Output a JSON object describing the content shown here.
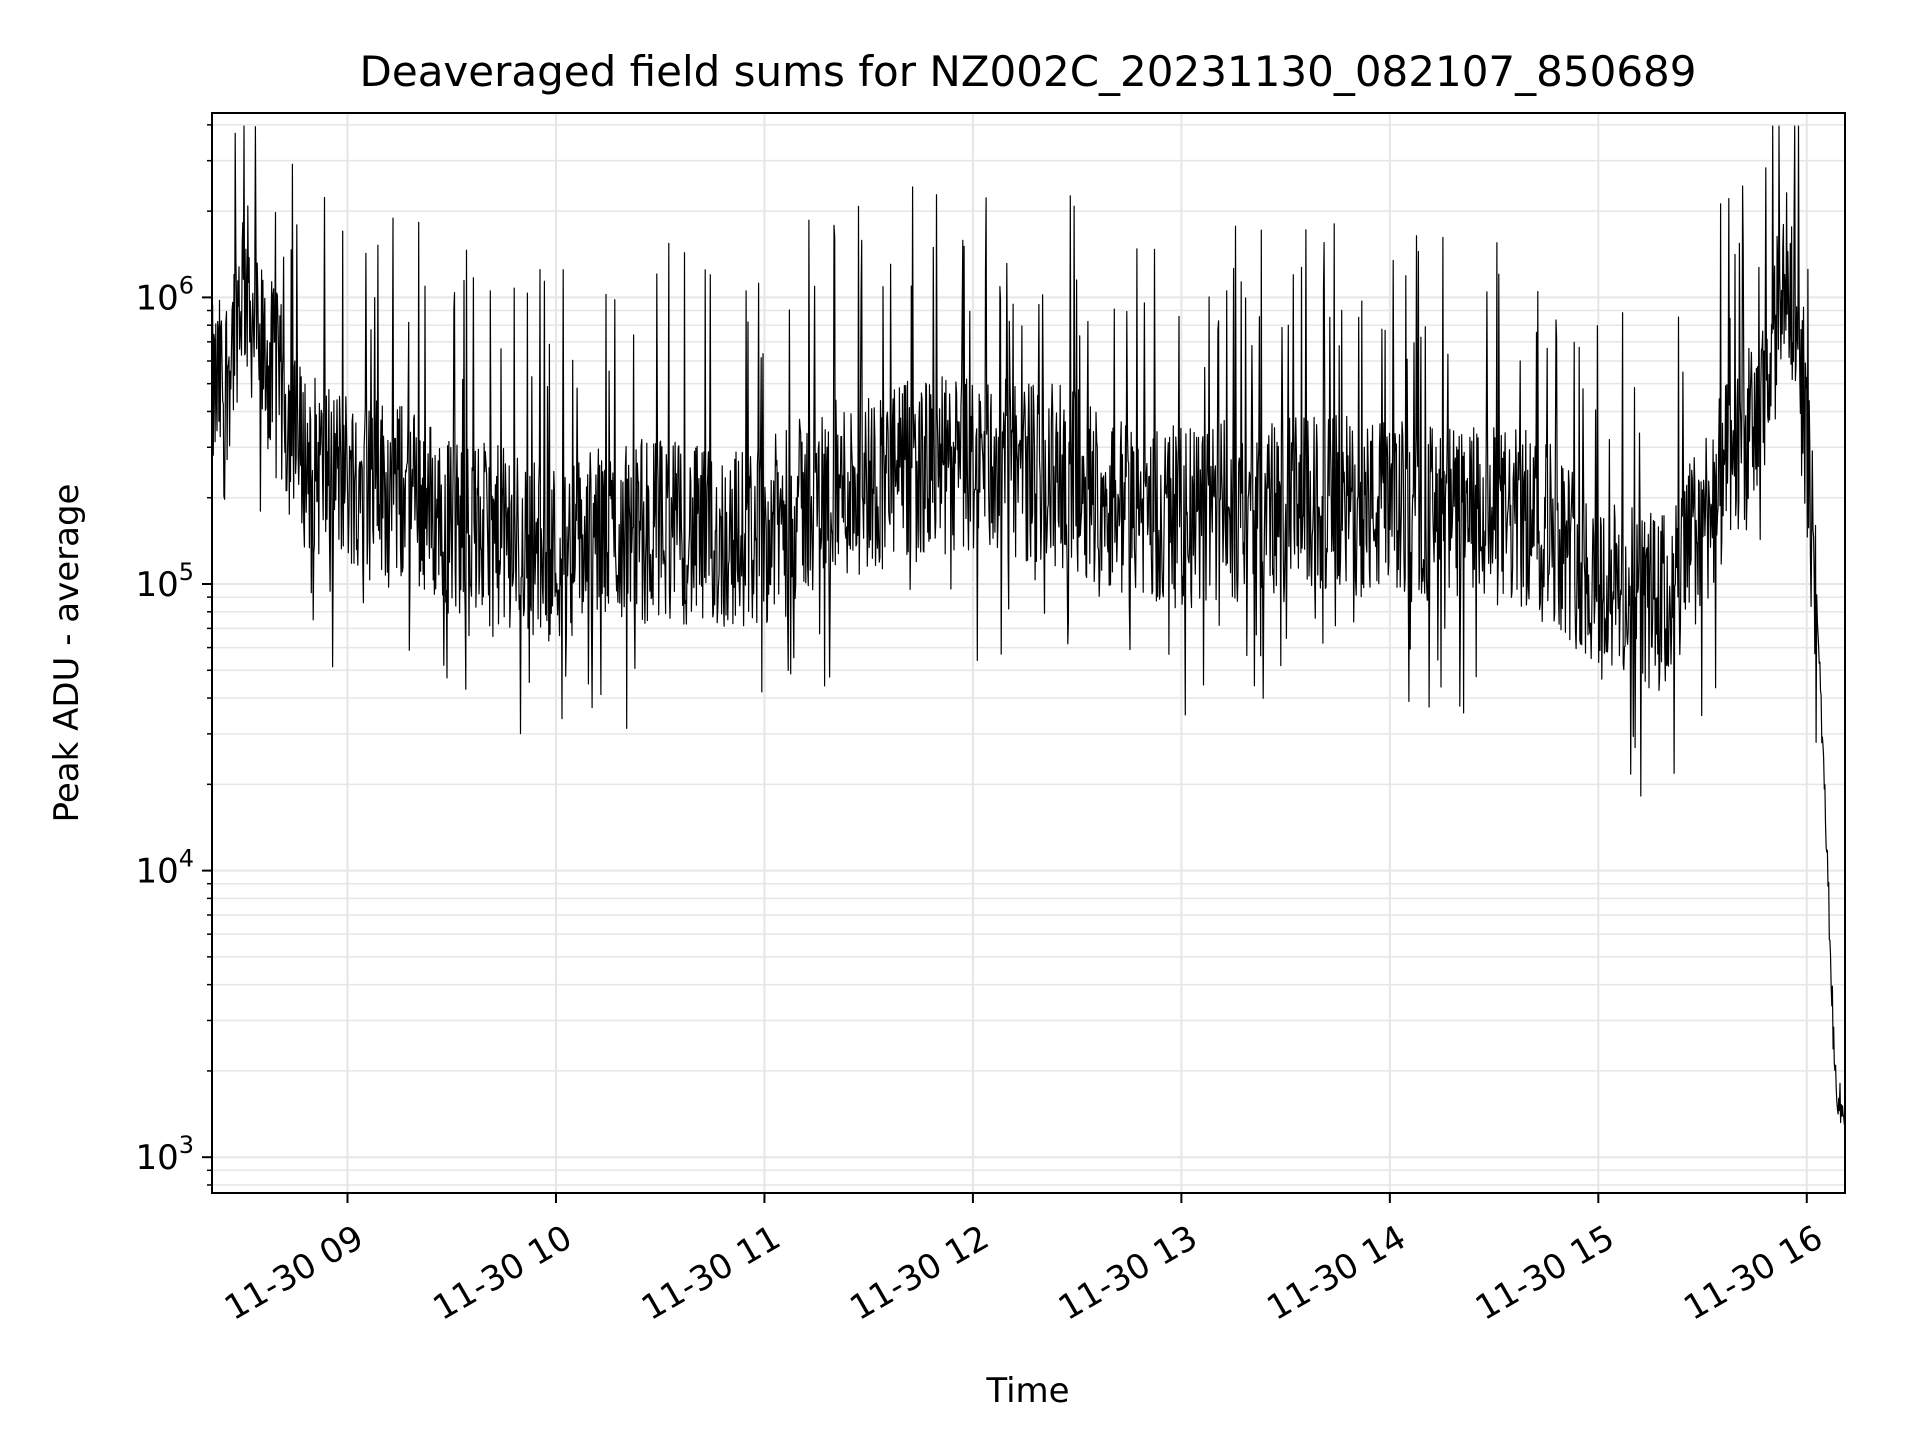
{
  "chart_data": {
    "type": "line",
    "title": "Deaveraged field sums for NZ002C_20231130_082107_850689",
    "xlabel": "Time",
    "ylabel": "Peak ADU - average",
    "y_scale": "log",
    "ylim": [
      750,
      4400000
    ],
    "xlim": [
      "2023-11-30 08:21",
      "2023-11-30 16:11"
    ],
    "grid": true,
    "line_color": "#000000",
    "grid_color": "#e6e6e6",
    "x_tick_labels": [
      "11-30 09",
      "11-30 10",
      "11-30 11",
      "11-30 12",
      "11-30 13",
      "11-30 14",
      "11-30 15",
      "11-30 16"
    ],
    "x_tick_times": [
      "2023-11-30 09:00",
      "2023-11-30 10:00",
      "2023-11-30 11:00",
      "2023-11-30 12:00",
      "2023-11-30 13:00",
      "2023-11-30 14:00",
      "2023-11-30 15:00",
      "2023-11-30 16:00"
    ],
    "y_ticks": [
      {
        "value": 1000,
        "base": "10",
        "exp": "3"
      },
      {
        "value": 10000,
        "base": "10",
        "exp": "4"
      },
      {
        "value": 100000,
        "base": "10",
        "exp": "5"
      },
      {
        "value": 1000000,
        "base": "10",
        "exp": "6"
      }
    ],
    "series": [
      {
        "x": [
          "2023-11-30 08:21",
          "2023-11-30 08:25",
          "2023-11-30 08:30",
          "2023-11-30 08:35",
          "2023-11-30 08:40",
          "2023-11-30 08:45",
          "2023-11-30 08:50",
          "2023-11-30 08:55",
          "2023-11-30 09:00",
          "2023-11-30 09:10",
          "2023-11-30 09:20",
          "2023-11-30 09:30",
          "2023-11-30 09:40",
          "2023-11-30 09:50",
          "2023-11-30 10:00",
          "2023-11-30 10:15",
          "2023-11-30 10:30",
          "2023-11-30 10:45",
          "2023-11-30 11:00",
          "2023-11-30 11:15",
          "2023-11-30 11:30",
          "2023-11-30 11:45",
          "2023-11-30 12:00",
          "2023-11-30 12:15",
          "2023-11-30 12:30",
          "2023-11-30 12:45",
          "2023-11-30 13:00",
          "2023-11-30 13:15",
          "2023-11-30 13:30",
          "2023-11-30 13:45",
          "2023-11-30 14:00",
          "2023-11-30 14:15",
          "2023-11-30 14:30",
          "2023-11-30 14:45",
          "2023-11-30 15:00",
          "2023-11-30 15:10",
          "2023-11-30 15:20",
          "2023-11-30 15:30",
          "2023-11-30 15:40",
          "2023-11-30 15:48",
          "2023-11-30 15:52",
          "2023-11-30 15:55",
          "2023-11-30 15:58",
          "2023-11-30 16:00",
          "2023-11-30 16:02",
          "2023-11-30 16:04",
          "2023-11-30 16:05",
          "2023-11-30 16:06",
          "2023-11-30 16:08",
          "2023-11-30 16:10",
          "2023-11-30 16:11"
        ],
        "y": [
          450000,
          520000,
          1200000,
          650000,
          500000,
          300000,
          260000,
          250000,
          240000,
          220000,
          200000,
          160000,
          150000,
          140000,
          130000,
          150000,
          160000,
          140000,
          150000,
          200000,
          230000,
          250000,
          260000,
          250000,
          230000,
          180000,
          170000,
          180000,
          185000,
          190000,
          180000,
          175000,
          170000,
          165000,
          100000,
          90000,
          85000,
          170000,
          280000,
          400000,
          900000,
          1200000,
          800000,
          300000,
          120000,
          40000,
          20000,
          10000,
          2000,
          1400,
          1500
        ]
      }
    ]
  }
}
